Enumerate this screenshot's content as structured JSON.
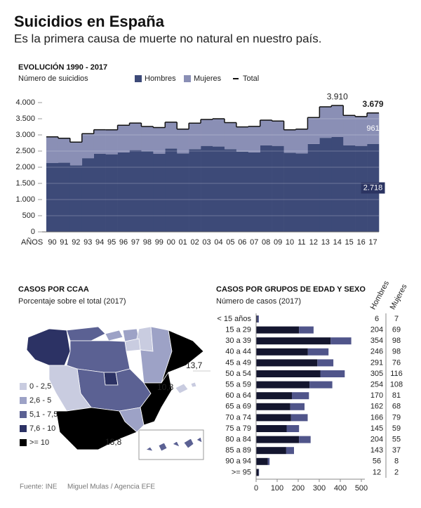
{
  "header": {
    "title": "Suicidios en España",
    "subtitle": "Es la primera causa de muerte no natural en nuestro país."
  },
  "footer": {
    "source": "Fuente: INE",
    "credit": "Miguel Mulas / Agencia EFE"
  },
  "chart_data": [
    {
      "type": "bar",
      "stacked": true,
      "title": "EVOLUCIÓN 1990 - 2017",
      "subtitle": "Número de suicidios",
      "x_label": "AÑOS",
      "categories": [
        "90",
        "91",
        "92",
        "93",
        "94",
        "95",
        "96",
        "97",
        "98",
        "99",
        "00",
        "01",
        "02",
        "03",
        "04",
        "05",
        "06",
        "07",
        "08",
        "09",
        "10",
        "11",
        "12",
        "13",
        "14",
        "15",
        "16",
        "17"
      ],
      "series": [
        {
          "name": "Hombres",
          "color": "#3d4a78",
          "values": [
            2130,
            2140,
            2060,
            2280,
            2420,
            2400,
            2460,
            2530,
            2490,
            2420,
            2580,
            2430,
            2560,
            2660,
            2640,
            2560,
            2480,
            2460,
            2680,
            2660,
            2450,
            2430,
            2720,
            2910,
            2940,
            2680,
            2660,
            2718
          ],
          "value_labels": [
            null,
            null,
            null,
            null,
            null,
            null,
            null,
            null,
            null,
            null,
            null,
            null,
            null,
            null,
            null,
            null,
            null,
            null,
            null,
            null,
            null,
            null,
            null,
            null,
            null,
            null,
            null,
            "2.718"
          ]
        },
        {
          "name": "Mujeres",
          "color": "#8a8fb5",
          "values": [
            809,
            758,
            716,
            758,
            740,
            758,
            840,
            838,
            771,
            808,
            813,
            750,
            805,
            818,
            861,
            821,
            766,
            803,
            777,
            769,
            708,
            750,
            819,
            960,
            970,
            922,
            909,
            961
          ],
          "value_labels": [
            null,
            null,
            null,
            null,
            null,
            null,
            null,
            null,
            null,
            null,
            null,
            null,
            null,
            null,
            null,
            null,
            null,
            null,
            null,
            null,
            null,
            null,
            null,
            null,
            null,
            null,
            null,
            "961"
          ]
        },
        {
          "name": "Total",
          "type": "line",
          "color": "#111111",
          "values": [
            2939,
            2898,
            2776,
            3038,
            3160,
            3158,
            3300,
            3368,
            3261,
            3228,
            3393,
            3180,
            3365,
            3478,
            3501,
            3381,
            3246,
            3263,
            3457,
            3429,
            3158,
            3180,
            3539,
            3870,
            3910,
            3602,
            3569,
            3679
          ],
          "value_labels": [
            null,
            null,
            null,
            null,
            null,
            null,
            null,
            null,
            null,
            null,
            null,
            null,
            null,
            null,
            null,
            null,
            null,
            null,
            null,
            null,
            null,
            null,
            null,
            null,
            "3.910",
            null,
            null,
            "3.679"
          ]
        }
      ],
      "ylim": [
        0,
        4000
      ],
      "yticks": [
        0,
        500,
        {
          "value": 1000,
          "label": "1.000"
        },
        {
          "value": 1500,
          "label": "1.500"
        },
        {
          "value": 2000,
          "label": "2.000"
        },
        {
          "value": 2500,
          "label": "2.500"
        },
        {
          "value": 3000,
          "label": "3.000"
        },
        {
          "value": 3500,
          "label": "3.500"
        },
        {
          "value": 4000,
          "label": "4.000"
        }
      ],
      "grid": true
    },
    {
      "type": "map",
      "title": "CASOS POR CCAA",
      "subtitle": "Porcentaje sobre el total (2017)",
      "legend": [
        {
          "label": "0 - 2,5",
          "color": "#c9cce0"
        },
        {
          "label": "2,6 - 5",
          "color": "#9da2c6"
        },
        {
          "label": "5,1 - 7,5",
          "color": "#5b6193"
        },
        {
          "label": "7,6 - 10",
          "color": "#2c3264"
        },
        {
          "label": ">= 10",
          "color": "#000000"
        }
      ],
      "regions": [
        {
          "class": 3
        },
        {
          "class": 2
        },
        {
          "class": 1
        },
        {
          "class": 1
        },
        {
          "class": 0
        },
        {
          "class": 0
        },
        {
          "class": 1
        },
        {
          "class": 4
        },
        {
          "class": 2
        },
        {
          "class": 3
        },
        {
          "class": 2
        },
        {
          "class": 0
        },
        {
          "class": 4
        },
        {
          "class": 1
        },
        {
          "class": 4
        },
        {
          "class": 0
        },
        {
          "class": 2
        }
      ],
      "values": [
        13.7,
        10.8,
        18.8
      ],
      "value_labels": [
        "13,7",
        "10,8",
        "18,8"
      ]
    },
    {
      "type": "bar",
      "orientation": "horizontal",
      "stacked": true,
      "title": "CASOS POR GRUPOS DE EDAD Y SEXO",
      "subtitle": "Número de casos (2017)",
      "categories": [
        "< 15 años",
        "15 a 29",
        "30 a 39",
        "40 a 44",
        "45 a 49",
        "50 a 54",
        "55 a 59",
        "60 a 64",
        "65 a 69",
        "70 a 74",
        "75 a 79",
        "80 a 84",
        "85 a 89",
        "90 a 94",
        ">= 95"
      ],
      "series": [
        {
          "name": "Hombres",
          "color": "#14162f",
          "values": [
            6,
            204,
            354,
            246,
            291,
            305,
            254,
            170,
            162,
            166,
            145,
            204,
            143,
            56,
            12
          ]
        },
        {
          "name": "Mujeres",
          "color": "#50558a",
          "values": [
            7,
            69,
            98,
            98,
            76,
            116,
            108,
            81,
            68,
            79,
            59,
            55,
            37,
            8,
            2
          ]
        }
      ],
      "xlim": [
        0,
        500
      ],
      "xticks": [
        0,
        100,
        200,
        300,
        400,
        500
      ]
    }
  ]
}
